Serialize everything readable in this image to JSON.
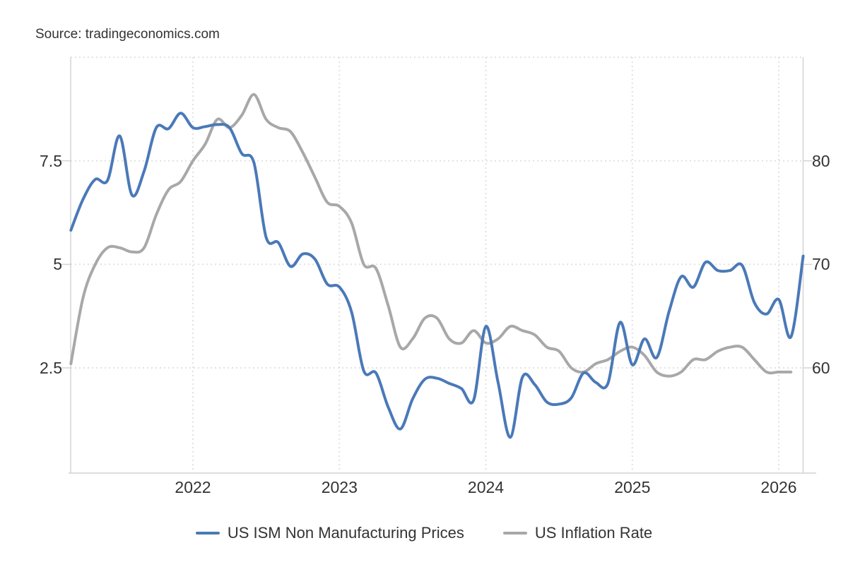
{
  "source": {
    "label": "Source: tradingeconomics.com"
  },
  "legend": {
    "items": [
      {
        "label": "US ISM Non Manufacturing Prices",
        "color": "#4a79b8"
      },
      {
        "label": "US Inflation Rate",
        "color": "#a8a8a8"
      }
    ]
  },
  "axes": {
    "left": {
      "labels": [
        "7.5",
        "5",
        "2.5"
      ],
      "values": [
        7.5,
        5,
        2.5
      ]
    },
    "right": {
      "labels": [
        "80",
        "70",
        "60"
      ],
      "values": [
        80,
        70,
        60
      ]
    },
    "x": {
      "labels": [
        "2022",
        "2023",
        "2024",
        "2025",
        "2026"
      ]
    }
  },
  "style": {
    "grid_color": "#e2e2e2",
    "axis_color": "#d4d4d4",
    "text_color": "#333333",
    "background": "#ffffff",
    "line_width": 4
  },
  "chart_data": {
    "type": "line",
    "title": "",
    "frequency": "monthly",
    "x_start": "2021-03",
    "x_end": "2026-03",
    "x_tick_labels": [
      "2022",
      "2023",
      "2024",
      "2025",
      "2026"
    ],
    "grid": "dotted",
    "legend_position": "bottom",
    "left_axis": {
      "ticks": [
        2.5,
        5,
        7.5
      ],
      "tick_labels": [
        "2.5",
        "5",
        "7.5"
      ],
      "range": [
        0,
        10
      ]
    },
    "right_axis": {
      "ticks": [
        60,
        70,
        80
      ],
      "tick_labels": [
        "60",
        "70",
        "80"
      ],
      "range": [
        50,
        90
      ]
    },
    "series": [
      {
        "name": "US ISM Non Manufacturing Prices",
        "axis": "right",
        "color": "#4a79b8",
        "start": "2021-03",
        "values": [
          73.3,
          76.3,
          78.2,
          78.1,
          82.4,
          76.7,
          79.0,
          83.2,
          83.1,
          84.6,
          83.2,
          83.3,
          83.5,
          83.2,
          80.7,
          79.8,
          72.6,
          72.1,
          69.8,
          71.0,
          70.5,
          68.1,
          67.8,
          65.4,
          59.7,
          59.5,
          56.2,
          54.1,
          57.0,
          58.9,
          59.0,
          58.5,
          58.0,
          56.9,
          64.0,
          58.6,
          53.3,
          59.1,
          58.4,
          56.7,
          56.5,
          57.1,
          59.5,
          58.6,
          58.5,
          64.4,
          60.3,
          62.8,
          61.0,
          65.4,
          68.8,
          67.8,
          70.2,
          69.4,
          69.4,
          69.9,
          66.3,
          65.2,
          66.6,
          63.0,
          70.8
        ]
      },
      {
        "name": "US Inflation Rate",
        "axis": "left",
        "color": "#a8a8a8",
        "start": "2021-03",
        "values": [
          2.6,
          4.2,
          5.0,
          5.4,
          5.4,
          5.3,
          5.4,
          6.2,
          6.8,
          7.0,
          7.5,
          7.9,
          8.5,
          8.3,
          8.6,
          9.1,
          8.5,
          8.3,
          8.2,
          7.7,
          7.1,
          6.5,
          6.4,
          6.0,
          5.0,
          4.9,
          4.0,
          3.0,
          3.2,
          3.7,
          3.7,
          3.2,
          3.1,
          3.4,
          3.1,
          3.2,
          3.5,
          3.4,
          3.3,
          3.0,
          2.9,
          2.5,
          2.4,
          2.6,
          2.7,
          2.9,
          3.0,
          2.8,
          2.4,
          2.3,
          2.4,
          2.7,
          2.7,
          2.9,
          3.0,
          3.0,
          2.7,
          2.4,
          2.4,
          2.4
        ]
      }
    ]
  }
}
